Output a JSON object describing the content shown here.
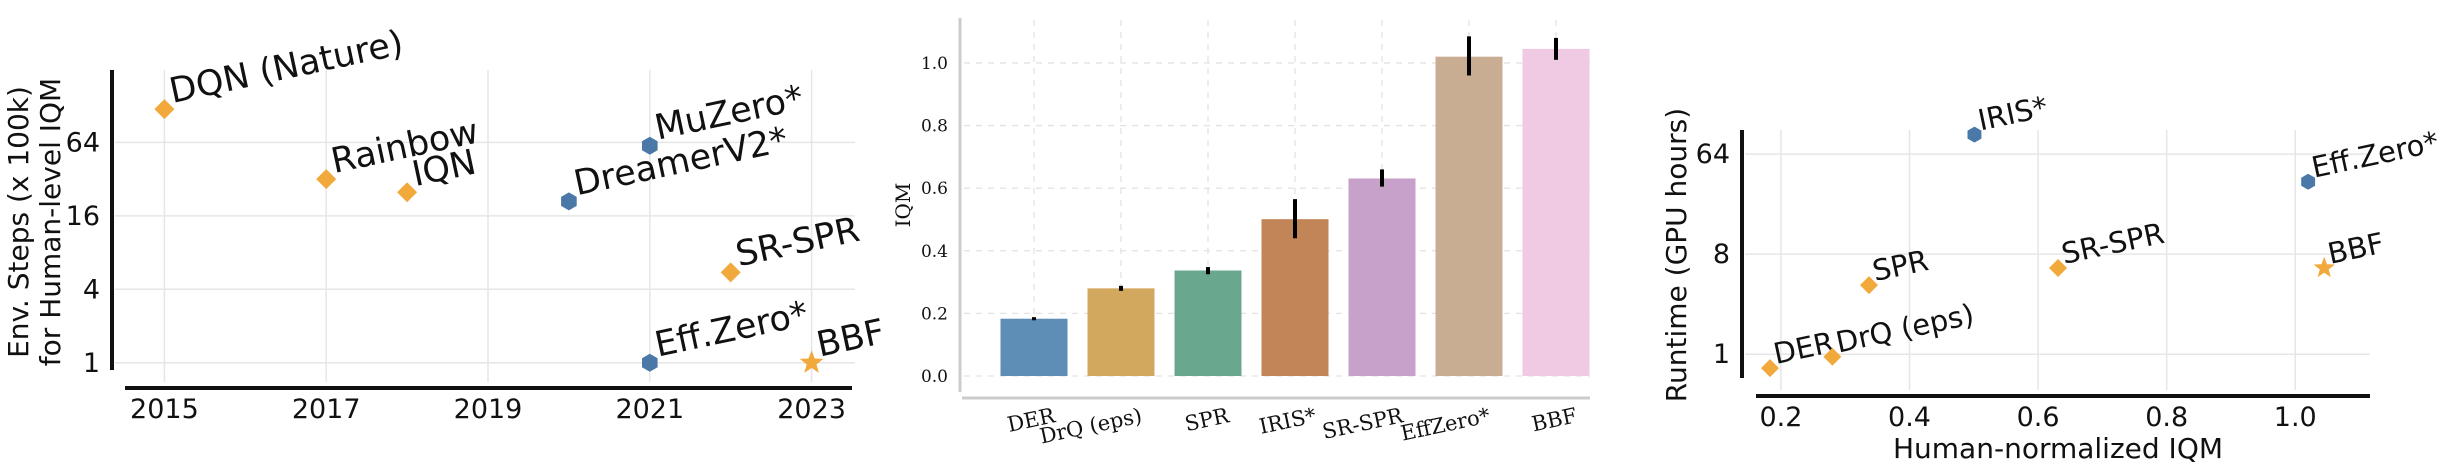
{
  "chart_data": [
    {
      "type": "scatter",
      "ylabel": "Env. Steps (x 100k)\nfor Human-level IQM",
      "xlabel": "",
      "xticks": [
        "2015",
        "2017",
        "2019",
        "2021",
        "2023"
      ],
      "yticks": [
        "1",
        "4",
        "16",
        "64"
      ],
      "y_scale": "log2",
      "xlim": [
        2014.55,
        2023.45
      ],
      "ylim": [
        0.75,
        200
      ],
      "grid": true,
      "marker_colors": {
        "diamond": "#f2a93b",
        "hexagon": "#4a79a8",
        "star": "#f2a93b"
      },
      "points": [
        {
          "label": "DQN (Nature)",
          "x": 2015,
          "y": 120,
          "marker": "diamond"
        },
        {
          "label": "Rainbow",
          "x": 2017,
          "y": 32,
          "marker": "diamond"
        },
        {
          "label": "IQN",
          "x": 2018,
          "y": 25,
          "marker": "diamond"
        },
        {
          "label": "DreamerV2*",
          "x": 2020,
          "y": 21,
          "marker": "hexagon"
        },
        {
          "label": "MuZero*",
          "x": 2021,
          "y": 60,
          "marker": "hexagon"
        },
        {
          "label": "SR-SPR",
          "x": 2022,
          "y": 5.5,
          "marker": "diamond"
        },
        {
          "label": "Eff.Zero*",
          "x": 2021,
          "y": 1,
          "marker": "hexagon"
        },
        {
          "label": "BBF",
          "x": 2023,
          "y": 1,
          "marker": "star"
        }
      ]
    },
    {
      "type": "bar",
      "ylabel": "IQM",
      "xlabel": "",
      "categories": [
        "DER",
        "DrQ (eps)",
        "SPR",
        "IRIS*",
        "SR-SPR",
        "EffZero*",
        "BBF"
      ],
      "values": [
        0.183,
        0.28,
        0.337,
        0.501,
        0.631,
        1.02,
        1.045
      ],
      "error_low": [
        0.178,
        0.272,
        0.325,
        0.44,
        0.605,
        0.96,
        1.01
      ],
      "error_high": [
        0.188,
        0.288,
        0.348,
        0.565,
        0.66,
        1.085,
        1.08
      ],
      "colors": [
        "#5e8db5",
        "#d2a85f",
        "#69a88e",
        "#c28558",
        "#c7a1c9",
        "#c9ad92",
        "#f0c9e2"
      ],
      "yticks": [
        "0.0",
        "0.2",
        "0.4",
        "0.6",
        "0.8",
        "1.0"
      ],
      "ylim": [
        0,
        1.15
      ],
      "grid": true
    },
    {
      "type": "scatter",
      "xlabel": "Human-normalized IQM",
      "ylabel": "Runtime (GPU hours)",
      "xticks": [
        "0.2",
        "0.4",
        "0.6",
        "0.8",
        "1.0"
      ],
      "yticks": [
        "1",
        "8",
        "64"
      ],
      "y_scale": "log2",
      "xlim": [
        0.155,
        1.11
      ],
      "ylim": [
        0.55,
        110
      ],
      "grid": true,
      "points": [
        {
          "label": "IRIS*",
          "x": 0.501,
          "y": 96,
          "marker": "hexagon"
        },
        {
          "label": "Eff.Zero*",
          "x": 1.02,
          "y": 36,
          "marker": "hexagon"
        },
        {
          "label": "SPR",
          "x": 0.337,
          "y": 4.2,
          "marker": "diamond"
        },
        {
          "label": "SR-SPR",
          "x": 0.631,
          "y": 6,
          "marker": "diamond"
        },
        {
          "label": "BBF",
          "x": 1.045,
          "y": 6,
          "marker": "star"
        },
        {
          "label": "DER",
          "x": 0.183,
          "y": 0.75,
          "marker": "diamond"
        },
        {
          "label": "DrQ (eps)",
          "x": 0.28,
          "y": 0.95,
          "marker": "diamond"
        }
      ]
    }
  ]
}
